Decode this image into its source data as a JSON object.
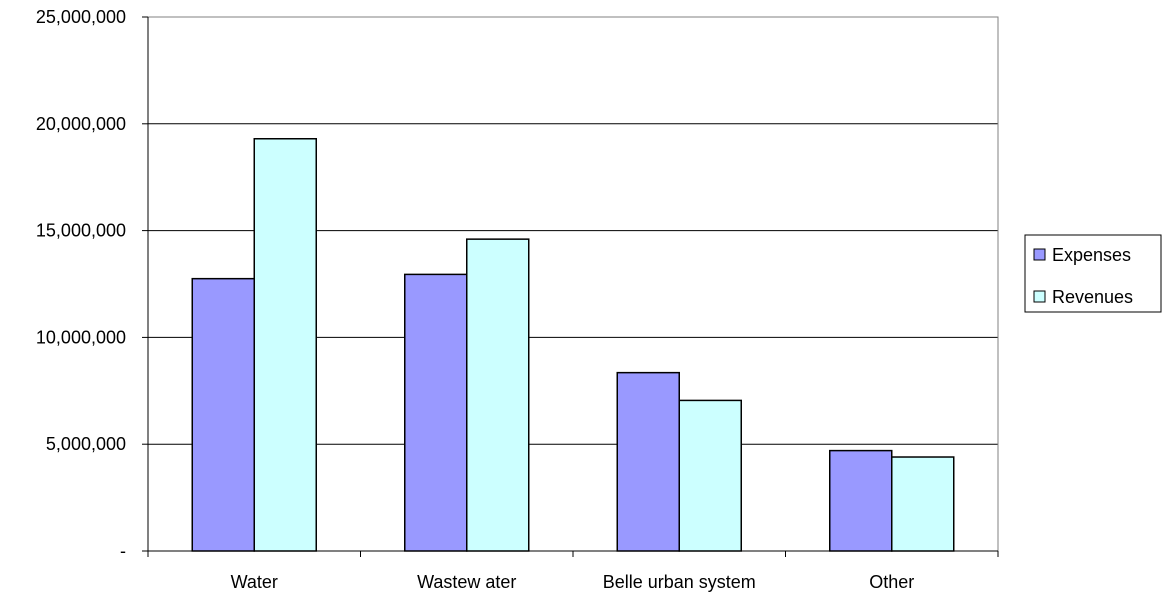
{
  "chart_data": {
    "type": "bar",
    "title": "",
    "xlabel": "",
    "ylabel": "",
    "categories": [
      "Water",
      "Wastew ater",
      "Belle urban system",
      "Other"
    ],
    "series": [
      {
        "name": "Expenses",
        "color": "#9999ff",
        "values": [
          12750000,
          12950000,
          8350000,
          4700000
        ]
      },
      {
        "name": "Revenues",
        "color": "#ccffff",
        "values": [
          19300000,
          14600000,
          7050000,
          4400000
        ]
      }
    ],
    "ylim": [
      0,
      25000000
    ],
    "yticks": [
      0,
      5000000,
      10000000,
      15000000,
      20000000,
      25000000
    ],
    "ytick_labels": [
      "-",
      "5,000,000",
      "10,000,000",
      "15,000,000",
      "20,000,000",
      "25,000,000"
    ],
    "grid": true,
    "legend_position": "right"
  }
}
